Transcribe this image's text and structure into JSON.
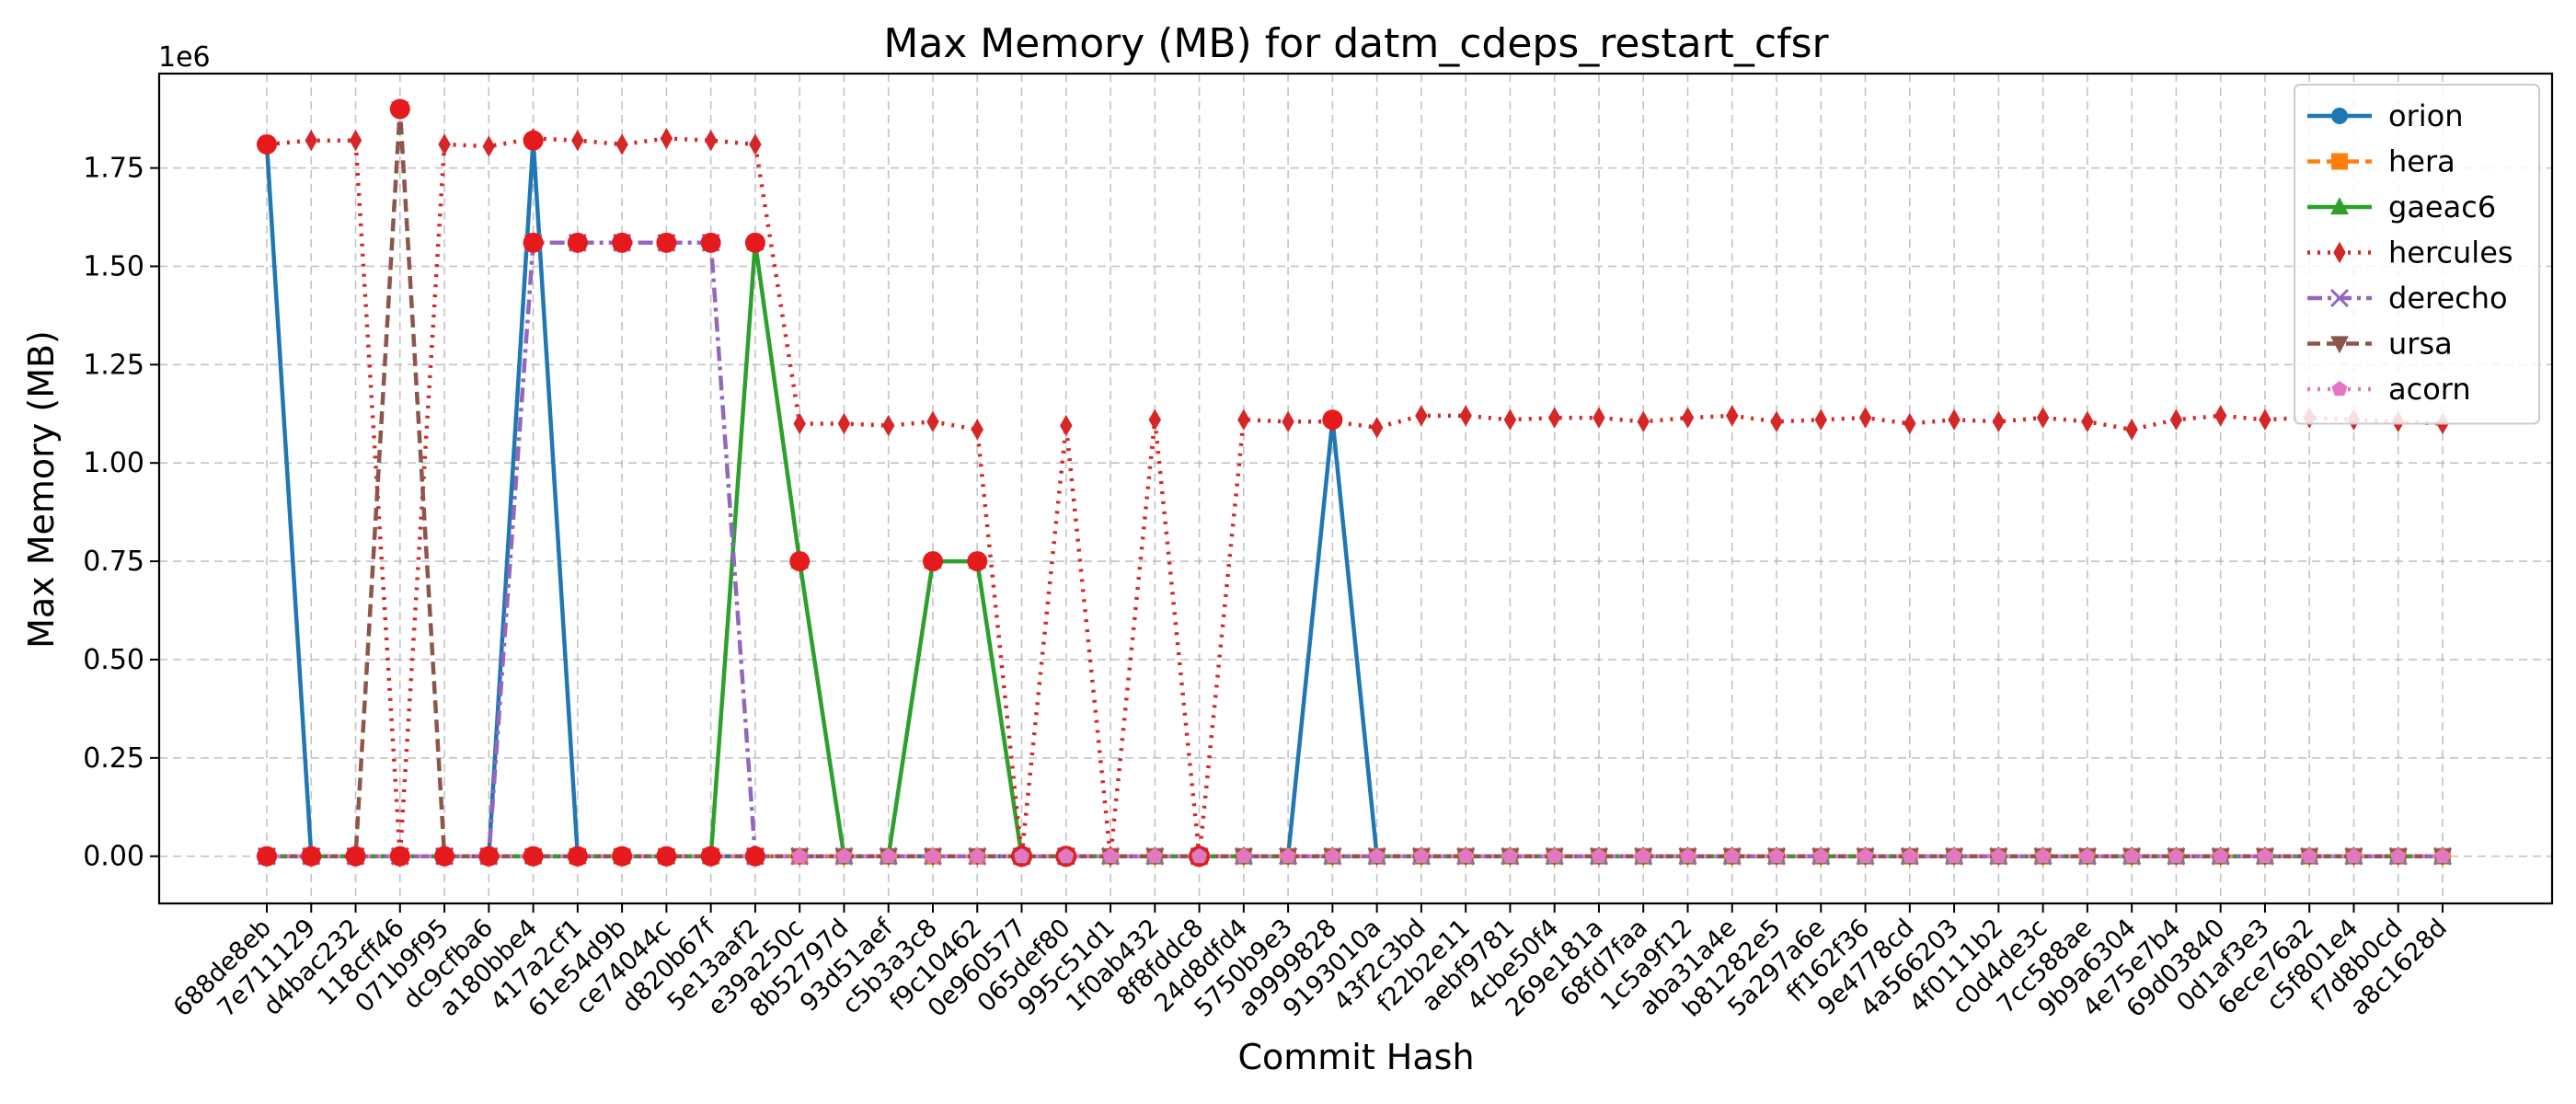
{
  "chart_data": {
    "type": "line",
    "title": "Max Memory (MB) for datm_cdeps_restart_cfsr",
    "xlabel": "Commit Hash",
    "ylabel": "Max Memory (MB)",
    "y_offset_label": "1e6",
    "ylim": [
      -120000,
      1990000
    ],
    "y_ticks": [
      0,
      250000,
      500000,
      750000,
      1000000,
      1250000,
      1500000,
      1750000
    ],
    "y_tick_labels": [
      "0.00",
      "0.25",
      "0.50",
      "0.75",
      "1.00",
      "1.25",
      "1.50",
      "1.75"
    ],
    "grid": true,
    "legend_position": "top-right",
    "categories": [
      "688de8eb",
      "7e711129",
      "d4bac232",
      "118cff46",
      "071b9f95",
      "dc9cfba6",
      "a180bbe4",
      "417a2cf1",
      "61e54d9b",
      "ce74044c",
      "d820b67f",
      "5e13aaf2",
      "e39a250c",
      "8b52797d",
      "93d51aef",
      "c5b3a3c8",
      "f9c10462",
      "0e960577",
      "065def80",
      "995c51d1",
      "1f0ab432",
      "8f8fddc8",
      "24d8dfd4",
      "5750b9e3",
      "a9999828",
      "9193010a",
      "43f2c3bd",
      "f22b2e11",
      "aebf9781",
      "4cbe50f4",
      "269e181a",
      "68fd7faa",
      "1c5a9f12",
      "aba31a4e",
      "b81282e5",
      "5a297a6e",
      "ff162f36",
      "9e4778cd",
      "4a566203",
      "4f0111b2",
      "c0d4de3c",
      "7cc588ae",
      "9b9a6304",
      "4e75e7b4",
      "69d03840",
      "0d1af3e3",
      "6ece76a2",
      "c5f801e4",
      "f7d8b0cd",
      "a8c1628d"
    ],
    "series": [
      {
        "name": "orion",
        "color": "#1f77b4",
        "style": "solid",
        "marker": "circle",
        "values": [
          1810000,
          0,
          0,
          0,
          0,
          0,
          1820000,
          0,
          0,
          0,
          0,
          0,
          0,
          0,
          0,
          0,
          0,
          0,
          0,
          0,
          0,
          0,
          0,
          0,
          1110000,
          0,
          0,
          0,
          0,
          0,
          0,
          0,
          0,
          0,
          0,
          0,
          0,
          0,
          0,
          0,
          0,
          0,
          0,
          0,
          0,
          0,
          0,
          0,
          0,
          0
        ]
      },
      {
        "name": "hera",
        "color": "#ff7f0e",
        "style": "dashed",
        "marker": "square",
        "values": [
          0,
          0,
          0,
          0,
          0,
          0,
          0,
          0,
          0,
          0,
          0,
          0,
          0,
          0,
          0,
          0,
          0,
          0,
          0,
          0,
          0,
          0,
          0,
          0,
          0,
          0,
          0,
          0,
          0,
          0,
          0,
          0,
          0,
          0,
          0,
          0,
          0,
          0,
          0,
          0,
          0,
          0,
          0,
          0,
          0,
          0,
          0,
          0,
          0,
          0
        ]
      },
      {
        "name": "gaeac6",
        "color": "#2ca02c",
        "style": "solid",
        "marker": "triangle",
        "values": [
          0,
          0,
          0,
          0,
          0,
          0,
          0,
          0,
          0,
          0,
          0,
          1560000,
          750000,
          0,
          0,
          750000,
          750000,
          0,
          0,
          0,
          0,
          0,
          0,
          0,
          0,
          0,
          0,
          0,
          0,
          0,
          0,
          0,
          0,
          0,
          0,
          0,
          0,
          0,
          0,
          0,
          0,
          0,
          0,
          0,
          0,
          0,
          0,
          0,
          0,
          0
        ]
      },
      {
        "name": "hercules",
        "color": "#d62728",
        "style": "dotted",
        "marker": "diamond",
        "values": [
          1810000,
          1820000,
          1820000,
          0,
          1810000,
          1805000,
          1825000,
          1820000,
          1810000,
          1825000,
          1820000,
          1810000,
          1100000,
          1100000,
          1095000,
          1105000,
          1085000,
          0,
          1095000,
          0,
          1110000,
          0,
          1110000,
          1105000,
          1105000,
          1090000,
          1120000,
          1120000,
          1110000,
          1115000,
          1115000,
          1105000,
          1115000,
          1120000,
          1105000,
          1110000,
          1115000,
          1100000,
          1110000,
          1105000,
          1115000,
          1105000,
          1085000,
          1110000,
          1120000,
          1110000,
          1115000,
          1110000,
          1105000,
          1100000
        ]
      },
      {
        "name": "derecho",
        "color": "#9467bd",
        "style": "dashdot",
        "marker": "x",
        "values": [
          0,
          0,
          0,
          0,
          0,
          0,
          1560000,
          1560000,
          1560000,
          1560000,
          1560000,
          0,
          0,
          0,
          0,
          0,
          0,
          0,
          0,
          0,
          0,
          0,
          0,
          0,
          0,
          0,
          0,
          0,
          0,
          0,
          0,
          0,
          0,
          0,
          0,
          0,
          0,
          0,
          0,
          0,
          0,
          0,
          0,
          0,
          0,
          0,
          0,
          0,
          0,
          0
        ]
      },
      {
        "name": "ursa",
        "color": "#8c564b",
        "style": "dashed",
        "marker": "triangle-down",
        "values": [
          0,
          0,
          0,
          1900000,
          0,
          0,
          0,
          0,
          0,
          0,
          0,
          0,
          0,
          0,
          0,
          0,
          0,
          0,
          0,
          0,
          0,
          0,
          0,
          0,
          0,
          0,
          0,
          0,
          0,
          0,
          0,
          0,
          0,
          0,
          0,
          0,
          0,
          0,
          0,
          0,
          0,
          0,
          0,
          0,
          0,
          0,
          0,
          0,
          0,
          0
        ]
      },
      {
        "name": "acorn",
        "color": "#e377c2",
        "style": "dotted",
        "marker": "pentagon",
        "values": [
          0,
          0,
          0,
          0,
          0,
          0,
          0,
          0,
          0,
          0,
          0,
          0,
          0,
          0,
          0,
          0,
          0,
          0,
          0,
          0,
          0,
          0,
          0,
          0,
          0,
          0,
          0,
          0,
          0,
          0,
          0,
          0,
          0,
          0,
          0,
          0,
          0,
          0,
          0,
          0,
          0,
          0,
          0,
          0,
          0,
          0,
          0,
          0,
          0,
          0
        ]
      }
    ],
    "highlight_points": [
      {
        "x": "688de8eb",
        "y": 1810000
      },
      {
        "x": "688de8eb",
        "y": 0
      },
      {
        "x": "7e711129",
        "y": 0
      },
      {
        "x": "d4bac232",
        "y": 0
      },
      {
        "x": "118cff46",
        "y": 1900000
      },
      {
        "x": "118cff46",
        "y": 0
      },
      {
        "x": "071b9f95",
        "y": 0
      },
      {
        "x": "dc9cfba6",
        "y": 0
      },
      {
        "x": "a180bbe4",
        "y": 1820000
      },
      {
        "x": "a180bbe4",
        "y": 1560000
      },
      {
        "x": "a180bbe4",
        "y": 0
      },
      {
        "x": "417a2cf1",
        "y": 1560000
      },
      {
        "x": "417a2cf1",
        "y": 0
      },
      {
        "x": "61e54d9b",
        "y": 1560000
      },
      {
        "x": "61e54d9b",
        "y": 0
      },
      {
        "x": "ce74044c",
        "y": 1560000
      },
      {
        "x": "ce74044c",
        "y": 0
      },
      {
        "x": "d820b67f",
        "y": 1560000
      },
      {
        "x": "d820b67f",
        "y": 0
      },
      {
        "x": "5e13aaf2",
        "y": 1560000
      },
      {
        "x": "5e13aaf2",
        "y": 0
      },
      {
        "x": "e39a250c",
        "y": 750000
      },
      {
        "x": "c5b3a3c8",
        "y": 750000
      },
      {
        "x": "f9c10462",
        "y": 750000
      },
      {
        "x": "0e960577",
        "y": 0,
        "hollow": true
      },
      {
        "x": "065def80",
        "y": 0,
        "hollow": true
      },
      {
        "x": "8f8fddc8",
        "y": 0,
        "hollow": true
      },
      {
        "x": "a9999828",
        "y": 1110000
      }
    ]
  }
}
